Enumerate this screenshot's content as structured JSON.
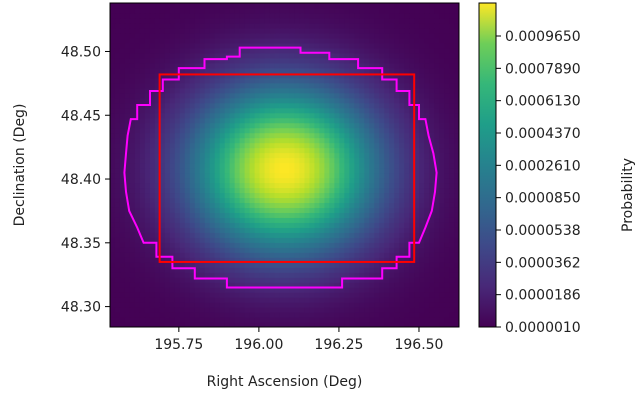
{
  "chart_data": {
    "type": "heatmap",
    "title": "",
    "xlabel": "Right Ascension (Deg)",
    "ylabel": "Declination (Deg)",
    "xlim": [
      195.535,
      196.625
    ],
    "ylim": [
      48.284,
      48.538
    ],
    "xticks": [
      195.75,
      196.0,
      196.25,
      196.5
    ],
    "xtick_labels": [
      "195.75",
      "196.00",
      "196.25",
      "196.50"
    ],
    "yticks": [
      48.3,
      48.35,
      48.4,
      48.45,
      48.5
    ],
    "ytick_labels": [
      "48.30",
      "48.35",
      "48.40",
      "48.45",
      "48.50"
    ],
    "colormap": "viridis",
    "colorbar_label": "Probability",
    "colorbar_ticks": [
      "0.0000010",
      "0.0000186",
      "0.0000362",
      "0.0000538",
      "0.0000850",
      "0.0002610",
      "0.0004370",
      "0.0006130",
      "0.0007890",
      "0.0009650"
    ],
    "distribution": {
      "peak_ra": 196.08,
      "peak_dec": 48.408,
      "sigma_ra": 0.2,
      "sigma_dec": 0.045,
      "peak_probability": 0.00106
    },
    "rectangle": {
      "color": "#ff0000",
      "ra_min": 195.69,
      "ra_max": 196.485,
      "dec_min": 48.335,
      "dec_max": 48.482
    },
    "contour": {
      "color": "#ff00ff",
      "points": [
        [
          195.94,
          48.496
        ],
        [
          195.94,
          48.503
        ],
        [
          196.13,
          48.503
        ],
        [
          196.13,
          48.499
        ],
        [
          196.22,
          48.499
        ],
        [
          196.22,
          48.494
        ],
        [
          196.31,
          48.494
        ],
        [
          196.31,
          48.487
        ],
        [
          196.385,
          48.487
        ],
        [
          196.385,
          48.478
        ],
        [
          196.43,
          48.478
        ],
        [
          196.43,
          48.469
        ],
        [
          196.47,
          48.469
        ],
        [
          196.47,
          48.458
        ],
        [
          196.5,
          48.458
        ],
        [
          196.5,
          48.447
        ],
        [
          196.52,
          48.447
        ],
        [
          196.53,
          48.434
        ],
        [
          196.545,
          48.42
        ],
        [
          196.555,
          48.405
        ],
        [
          196.55,
          48.39
        ],
        [
          196.54,
          48.375
        ],
        [
          196.52,
          48.362
        ],
        [
          196.5,
          48.35
        ],
        [
          196.47,
          48.35
        ],
        [
          196.47,
          48.339
        ],
        [
          196.43,
          48.339
        ],
        [
          196.43,
          48.33
        ],
        [
          196.385,
          48.33
        ],
        [
          196.385,
          48.322
        ],
        [
          196.26,
          48.322
        ],
        [
          196.26,
          48.315
        ],
        [
          195.9,
          48.315
        ],
        [
          195.9,
          48.322
        ],
        [
          195.8,
          48.322
        ],
        [
          195.8,
          48.33
        ],
        [
          195.73,
          48.33
        ],
        [
          195.73,
          48.339
        ],
        [
          195.68,
          48.339
        ],
        [
          195.68,
          48.35
        ],
        [
          195.64,
          48.35
        ],
        [
          195.62,
          48.362
        ],
        [
          195.595,
          48.375
        ],
        [
          195.585,
          48.39
        ],
        [
          195.58,
          48.405
        ],
        [
          195.585,
          48.42
        ],
        [
          195.59,
          48.434
        ],
        [
          195.6,
          48.447
        ],
        [
          195.62,
          48.447
        ],
        [
          195.62,
          48.458
        ],
        [
          195.66,
          48.458
        ],
        [
          195.66,
          48.469
        ],
        [
          195.7,
          48.469
        ],
        [
          195.7,
          48.478
        ],
        [
          195.75,
          48.478
        ],
        [
          195.75,
          48.487
        ],
        [
          195.83,
          48.487
        ],
        [
          195.83,
          48.494
        ],
        [
          195.9,
          48.494
        ],
        [
          195.9,
          48.496
        ]
      ]
    }
  }
}
